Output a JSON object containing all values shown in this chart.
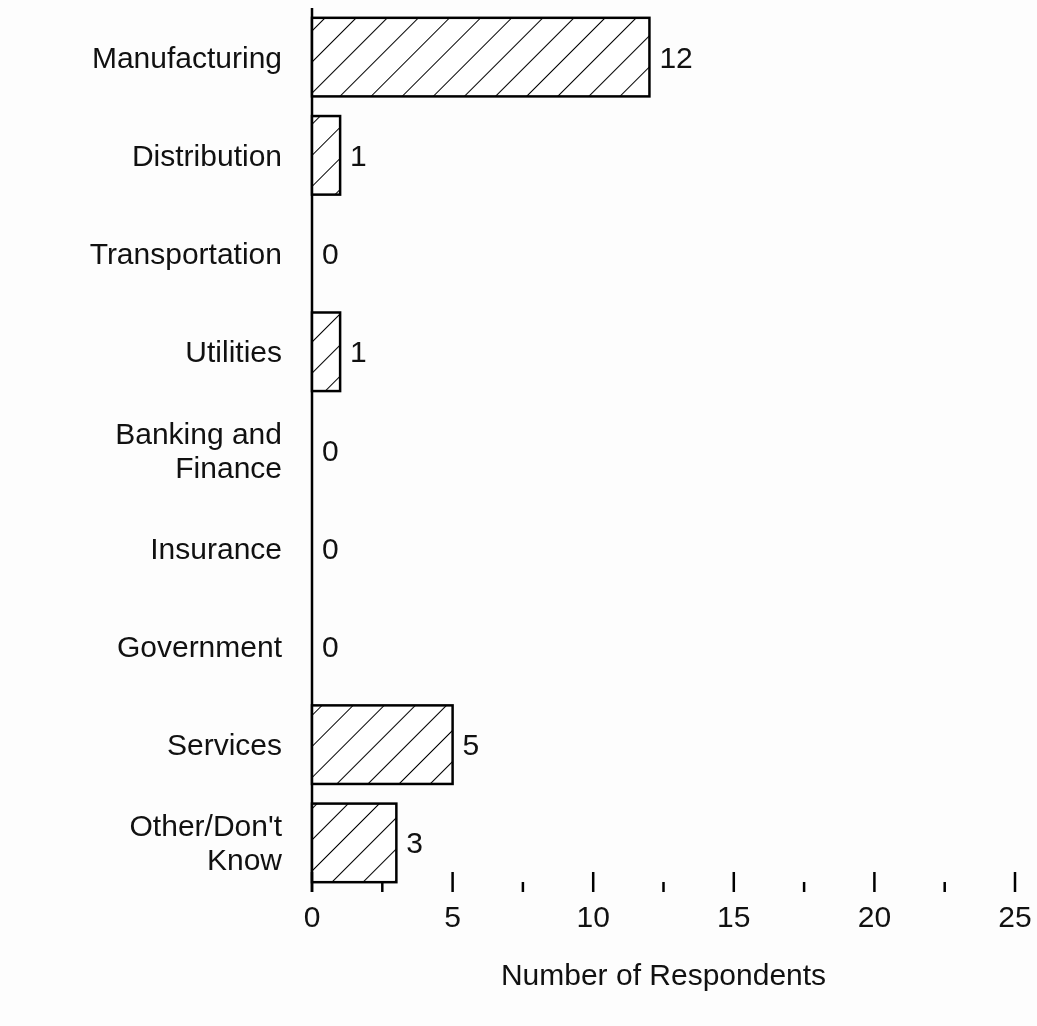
{
  "chart_data": {
    "type": "bar",
    "orientation": "horizontal",
    "xlabel": "Number of Respondents",
    "categories": [
      "Manufacturing",
      "Distribution",
      "Transportation",
      "Utilities",
      "Banking and Finance",
      "Insurance",
      "Government",
      "Services",
      "Other/Don't Know"
    ],
    "values": [
      12,
      1,
      0,
      1,
      0,
      0,
      0,
      5,
      3
    ],
    "color": "#000000",
    "xlim": [
      0,
      25
    ],
    "xticks": [
      0,
      {
        "value": 2.5,
        "label": null
      },
      5,
      {
        "value": 7.5,
        "label": null
      },
      10,
      {
        "value": 12.5,
        "label": null
      },
      15,
      {
        "value": 17.5,
        "label": null
      },
      20,
      {
        "value": 22.5,
        "label": null
      },
      25
    ],
    "data_labels": true
  }
}
